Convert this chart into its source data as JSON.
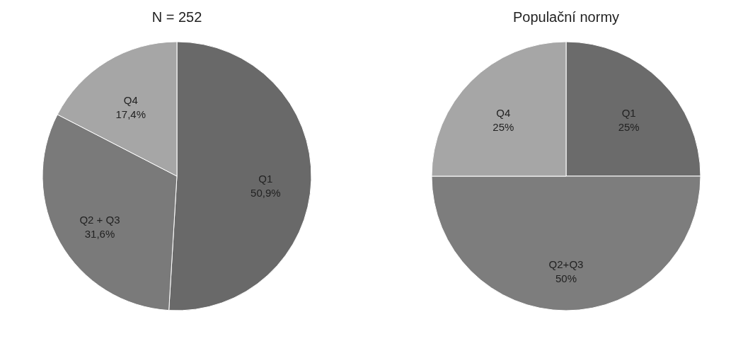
{
  "chart_data": [
    {
      "type": "pie",
      "title": "N = 252",
      "categories": [
        "Q1",
        "Q2 + Q3",
        "Q4"
      ],
      "values": [
        50.9,
        31.6,
        17.4
      ],
      "colors": [
        "#696969",
        "#7a7a7a",
        "#a6a6a6"
      ],
      "value_labels": [
        "50,9%",
        "31,6%",
        "17,4%"
      ],
      "legend": false
    },
    {
      "type": "pie",
      "title": "Populační normy",
      "categories": [
        "Q1",
        "Q2+Q3",
        "Q4"
      ],
      "values": [
        25,
        50,
        25
      ],
      "colors": [
        "#6b6b6b",
        "#7d7d7d",
        "#a6a6a6"
      ],
      "value_labels": [
        "25%",
        "50%",
        "25%"
      ],
      "legend": false
    }
  ]
}
